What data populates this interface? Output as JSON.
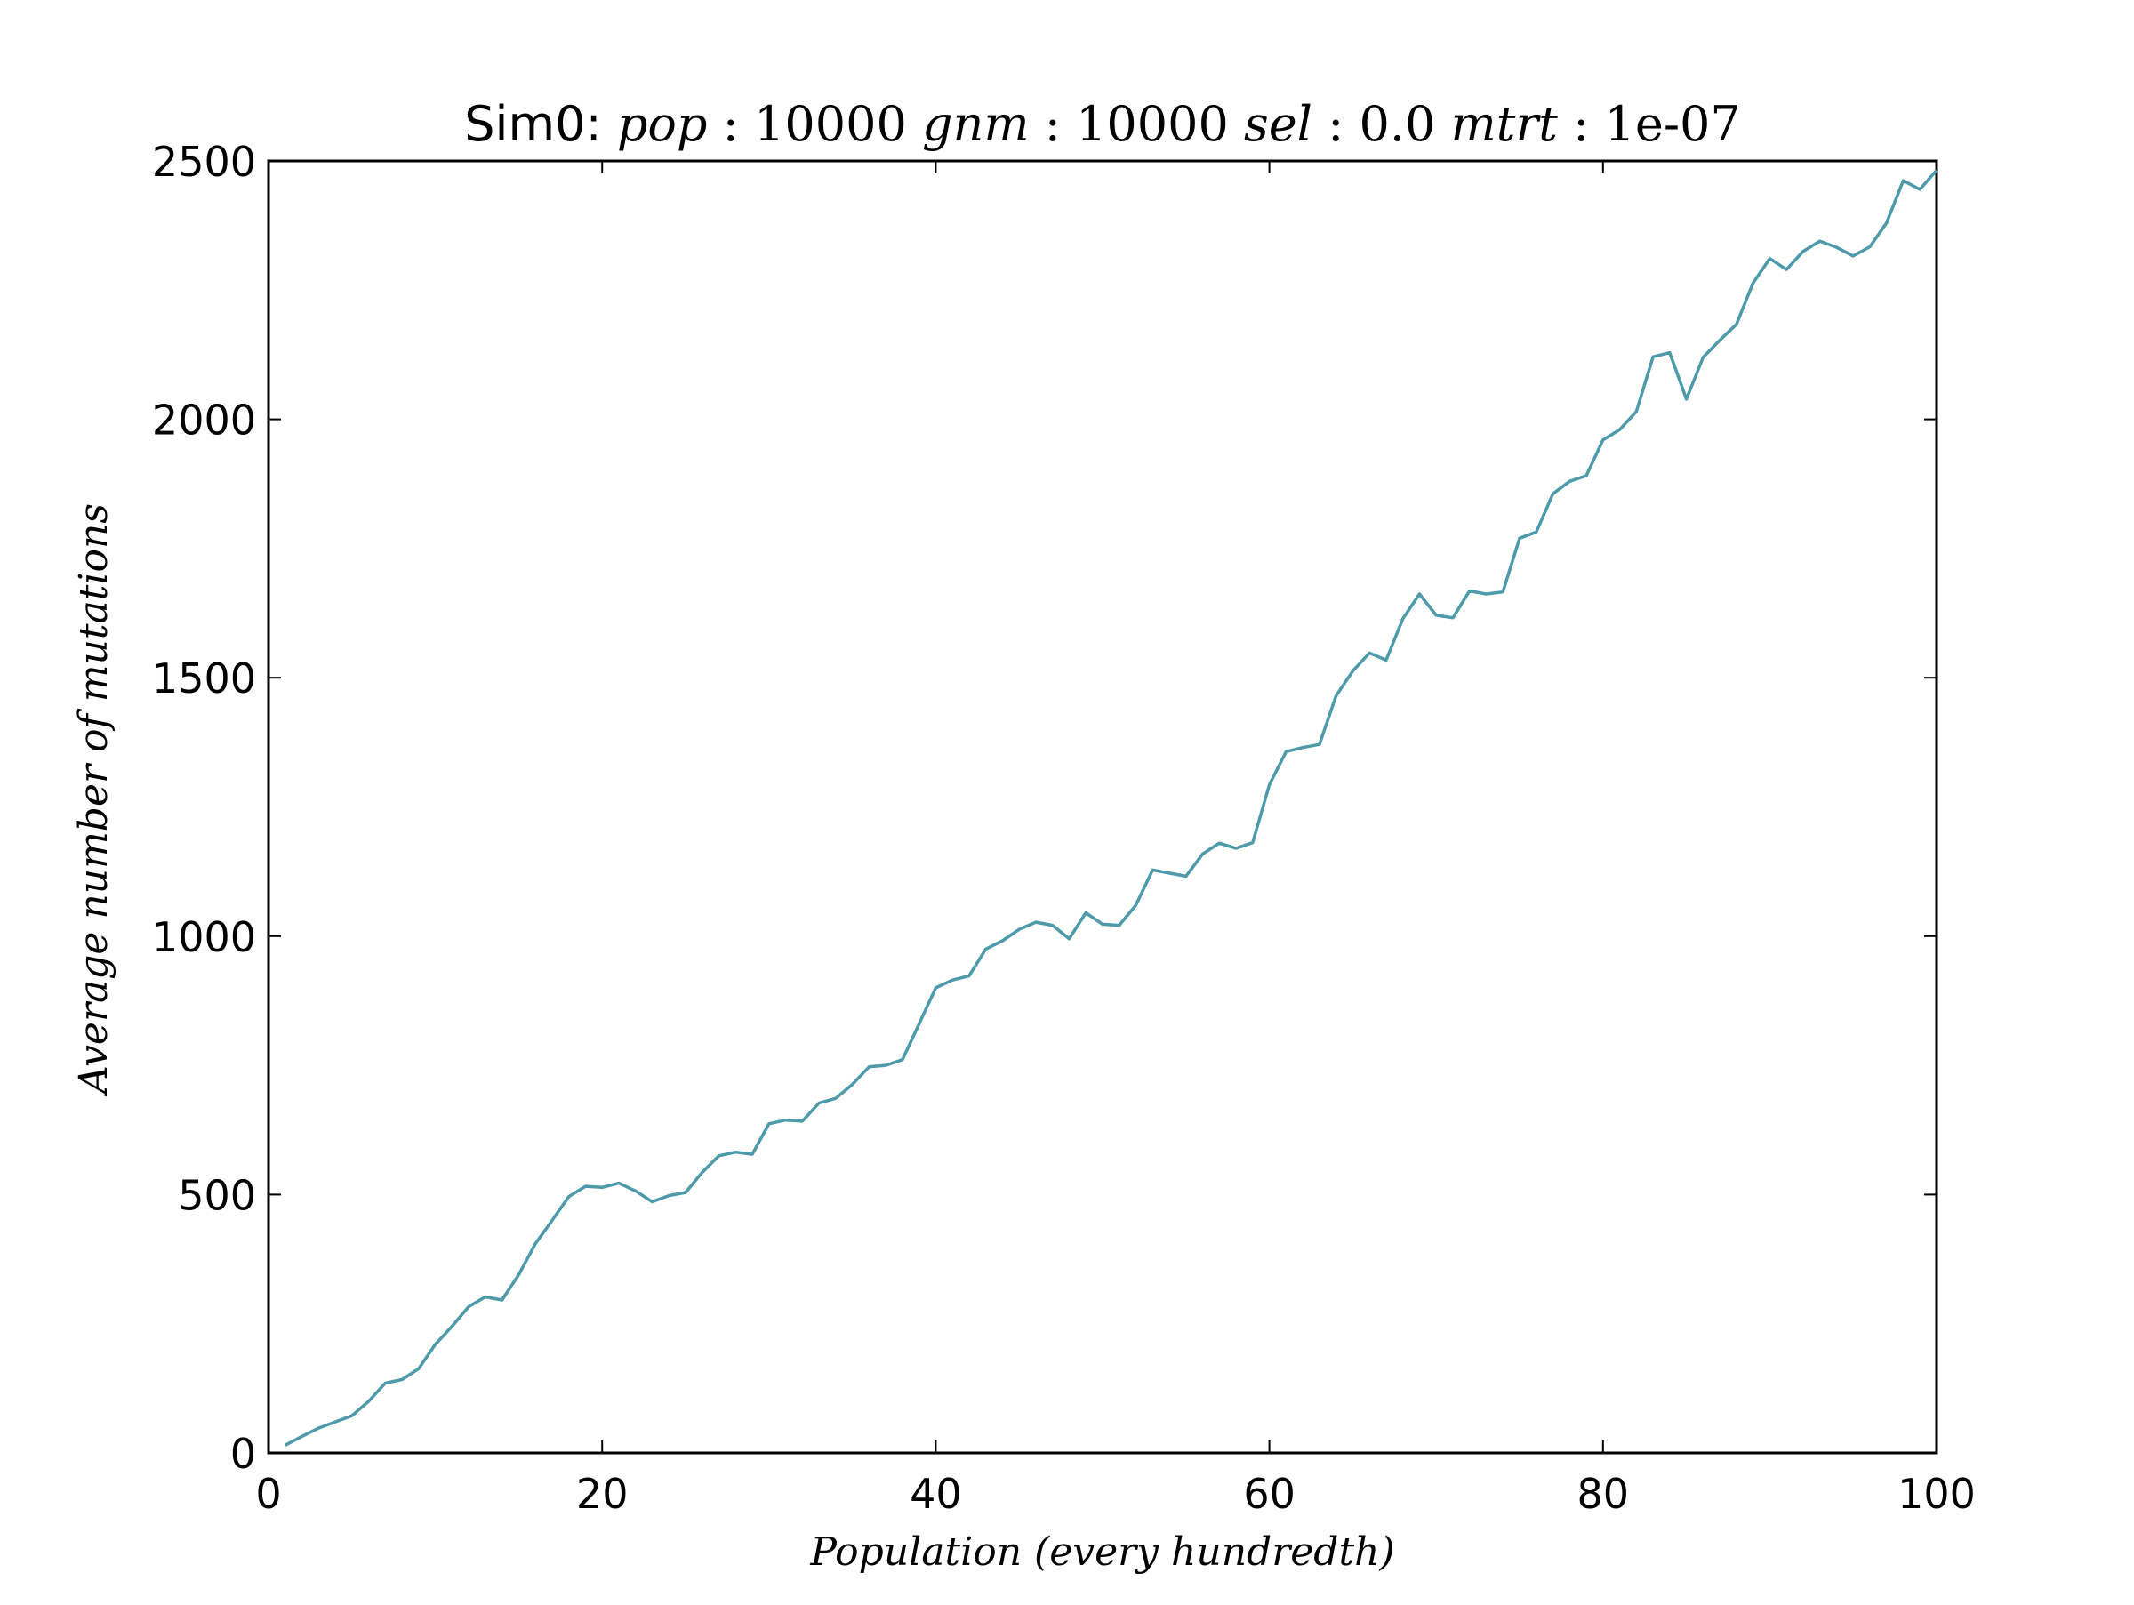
{
  "chart_data": {
    "type": "line",
    "title": {
      "prefix": "Sim0:",
      "parts": [
        {
          "name": "pop",
          "value": "10000"
        },
        {
          "name": "gnm",
          "value": "10000"
        },
        {
          "name": "sel",
          "value": "0.0"
        },
        {
          "name": "mtrt",
          "value": "1e-07"
        }
      ]
    },
    "xlabel": "Population (every hundredth)",
    "ylabel": "Average number of mutations",
    "xlim": [
      0,
      100
    ],
    "ylim": [
      0,
      2500
    ],
    "xticks": [
      0,
      20,
      40,
      60,
      80,
      100
    ],
    "xtick_labels": [
      "0",
      "20",
      "40",
      "60",
      "80",
      "100"
    ],
    "yticks": [
      0,
      500,
      1000,
      1500,
      2000,
      2500
    ],
    "ytick_labels": [
      "0",
      "500",
      "1000",
      "1500",
      "2000",
      "2500"
    ],
    "grid": false,
    "series": [
      {
        "color": "#4c9aaa",
        "x": [
          1,
          2,
          3,
          4,
          5,
          6,
          7,
          8,
          9,
          10,
          11,
          12,
          13,
          14,
          15,
          16,
          17,
          18,
          19,
          20,
          21,
          22,
          23,
          24,
          25,
          26,
          27,
          28,
          29,
          30,
          31,
          32,
          33,
          34,
          35,
          36,
          37,
          38,
          39,
          40,
          41,
          42,
          43,
          44,
          45,
          46,
          47,
          48,
          49,
          50,
          51,
          52,
          53,
          54,
          55,
          56,
          57,
          58,
          59,
          60,
          61,
          62,
          63,
          64,
          65,
          66,
          67,
          68,
          69,
          70,
          71,
          72,
          73,
          74,
          75,
          76,
          77,
          78,
          79,
          80,
          81,
          82,
          83,
          84,
          85,
          86,
          87,
          88,
          89,
          90,
          91,
          92,
          93,
          94,
          95,
          96,
          97,
          98,
          99,
          100
        ],
        "y": [
          15,
          32,
          48,
          60,
          72,
          100,
          135,
          142,
          163,
          210,
          245,
          283,
          302,
          296,
          345,
          405,
          450,
          496,
          516,
          514,
          522,
          507,
          486,
          498,
          504,
          543,
          575,
          582,
          578,
          637,
          644,
          642,
          677,
          686,
          713,
          747,
          750,
          761,
          830,
          900,
          915,
          923,
          975,
          991,
          1013,
          1027,
          1021,
          995,
          1045,
          1023,
          1021,
          1060,
          1128,
          1122,
          1116,
          1159,
          1180,
          1170,
          1181,
          1293,
          1357,
          1365,
          1371,
          1465,
          1513,
          1548,
          1534,
          1614,
          1662,
          1621,
          1616,
          1668,
          1662,
          1666,
          1770,
          1782,
          1856,
          1880,
          1891,
          1960,
          1980,
          2015,
          2121,
          2129,
          2039,
          2120,
          2153,
          2184,
          2264,
          2311,
          2290,
          2325,
          2345,
          2333,
          2316,
          2334,
          2380,
          2462,
          2445,
          2482
        ]
      }
    ]
  }
}
